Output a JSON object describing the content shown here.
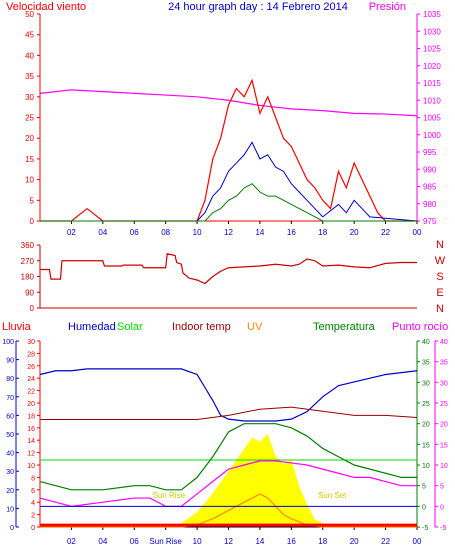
{
  "title": "24 hour graph day : 14 Febrero 2014",
  "colors": {
    "wind": "#ff0000",
    "gust_avg": "#0000cc",
    "wind_low": "#008000",
    "pressure": "#ff00ff",
    "direction": "#cc0000",
    "humidity": "#0000cc",
    "solar": "#00dd00",
    "indoor": "#990000",
    "uv": "#ff8800",
    "temperature": "#008000",
    "dewpoint": "#ff00ff",
    "rain": "#ff0000",
    "solar_fill": "#ffff00",
    "axis": "#000000"
  },
  "chart_data": [
    {
      "type": "line",
      "name": "wind-pressure",
      "left_label": "Velocidad viento",
      "right_label": "Presión",
      "x_ticks": [
        "02",
        "04",
        "06",
        "08",
        "10",
        "12",
        "14",
        "16",
        "18",
        "20",
        "22",
        "00"
      ],
      "x_range": [
        0,
        24
      ],
      "y_left_range": [
        0,
        50
      ],
      "y_left_ticks": [
        0,
        5,
        10,
        15,
        20,
        25,
        30,
        35,
        40,
        45,
        50
      ],
      "y_right_range": [
        975,
        1035
      ],
      "y_right_ticks": [
        975,
        980,
        985,
        990,
        995,
        1000,
        1005,
        1010,
        1015,
        1020,
        1025,
        1030,
        1035
      ],
      "pressure": {
        "x": [
          0,
          2,
          4,
          6,
          8,
          10,
          12,
          14,
          16,
          18,
          20,
          22,
          24
        ],
        "y": [
          1012,
          1013,
          1012.5,
          1012,
          1011.5,
          1011,
          1010,
          1008.5,
          1007.5,
          1007,
          1006.2,
          1006,
          1005.5
        ]
      },
      "wind_max": {
        "x": [
          0,
          1,
          2,
          3,
          4,
          5,
          6,
          7,
          8,
          9,
          10,
          10.5,
          11,
          11.5,
          12,
          12.5,
          13,
          13.5,
          14,
          14.5,
          15,
          15.5,
          16,
          16.5,
          17,
          17.5,
          18,
          18.5,
          19,
          19.5,
          20,
          20.5,
          21,
          21.5,
          22,
          22.5,
          23,
          24
        ],
        "y": [
          0,
          0,
          0,
          3,
          0,
          0,
          0,
          0,
          0,
          0,
          0,
          5,
          15,
          20,
          28,
          32,
          30,
          34,
          26,
          30,
          25,
          20,
          18,
          14,
          10,
          8,
          5,
          3,
          12,
          8,
          14,
          10,
          6,
          2,
          0,
          0,
          0,
          0
        ]
      },
      "wind_avg": {
        "x": [
          0,
          10,
          10.5,
          11,
          11.5,
          12,
          12.5,
          13,
          13.5,
          14,
          14.5,
          15,
          15.5,
          16,
          16.5,
          17,
          17.5,
          18,
          19,
          19.5,
          20,
          20.5,
          21,
          24
        ],
        "y": [
          0,
          0,
          2,
          6,
          8,
          12,
          14,
          16,
          19,
          15,
          16,
          13,
          12,
          9,
          7,
          5,
          3,
          1,
          4,
          2,
          5,
          3,
          1,
          0
        ]
      },
      "wind_low": {
        "x": [
          0,
          10.5,
          11,
          11.5,
          12,
          12.5,
          13,
          13.5,
          14,
          14.5,
          15,
          15.5,
          16,
          16.5,
          17,
          17.5,
          18,
          24
        ],
        "y": [
          0,
          0,
          2,
          3,
          5,
          6,
          8,
          9,
          7,
          6,
          6,
          5,
          4,
          3,
          2,
          1,
          0,
          0
        ]
      }
    },
    {
      "type": "line",
      "name": "wind-direction",
      "left_label_ticks": [
        0,
        90,
        180,
        270,
        360
      ],
      "right_labels": [
        "N",
        "W",
        "S",
        "E",
        "N"
      ],
      "y_range": [
        0,
        360
      ],
      "x_range": [
        0,
        24
      ],
      "direction": {
        "x": [
          0,
          0.6,
          0.7,
          1.3,
          1.4,
          4.0,
          4.1,
          5.2,
          5.3,
          6.5,
          6.6,
          8.0,
          8.1,
          8.6,
          8.7,
          9.0,
          9.1,
          9.5,
          10.0,
          10.5,
          11.0,
          11.5,
          12.0,
          13,
          14,
          15,
          16,
          16.5,
          17,
          17.5,
          18,
          19,
          20,
          21,
          22,
          23,
          24
        ],
        "y": [
          220,
          220,
          165,
          165,
          270,
          270,
          240,
          240,
          245,
          245,
          230,
          230,
          310,
          300,
          260,
          250,
          200,
          170,
          160,
          140,
          180,
          210,
          230,
          235,
          240,
          250,
          240,
          250,
          280,
          270,
          240,
          245,
          235,
          230,
          255,
          260,
          260
        ]
      }
    },
    {
      "type": "line",
      "name": "humidity-temperature",
      "labels": [
        "Lluvia",
        "Humedad",
        "Solar",
        "Indoor temp",
        "UV",
        "Temperatura",
        "Punto rocío"
      ],
      "x_ticks": [
        "02",
        "04",
        "06",
        "Sun Rise",
        "10",
        "12",
        "14",
        "16",
        "18",
        "20",
        "22",
        "00"
      ],
      "sun_labels": [
        "Sun Rise",
        "Sun Set"
      ],
      "x_range": [
        0,
        24
      ],
      "humidity_range": [
        0,
        100
      ],
      "humidity_ticks": [
        0,
        10,
        20,
        30,
        40,
        50,
        60,
        70,
        80,
        90,
        100
      ],
      "rain_ticks": [
        0,
        2,
        4,
        6,
        8,
        10,
        12,
        14,
        16,
        18,
        20,
        22,
        24,
        26,
        28,
        30
      ],
      "temp_range": [
        -5,
        40
      ],
      "temp_ticks": [
        -5,
        0,
        5,
        10,
        15,
        20,
        25,
        30,
        35,
        40
      ],
      "temp_ticks_outer": [
        -5,
        0,
        5,
        10,
        15,
        20,
        25,
        30,
        35,
        40
      ],
      "humidity": {
        "x": [
          0,
          1,
          2,
          3,
          4,
          6,
          8,
          9,
          10,
          10.5,
          11,
          11.5,
          12,
          13,
          14,
          15,
          16,
          17,
          18,
          19,
          20,
          21,
          22,
          23,
          24
        ],
        "y": [
          82,
          84,
          84,
          85,
          85,
          85,
          85,
          85,
          82,
          75,
          68,
          60,
          58,
          57,
          57,
          57,
          58,
          62,
          70,
          76,
          78,
          80,
          82,
          83,
          84
        ]
      },
      "solar_line": {
        "x": [
          0,
          24
        ],
        "y": [
          36,
          36
        ]
      },
      "indoor_temp": {
        "x": [
          0,
          4,
          8,
          10,
          12,
          14,
          16,
          18,
          20,
          22,
          24
        ],
        "y": [
          21,
          21,
          21,
          21,
          22,
          23.5,
          24,
          23,
          22,
          22,
          21.5
        ]
      },
      "temperature": {
        "x": [
          0,
          1,
          2,
          4,
          6,
          7,
          8,
          9,
          10,
          11,
          12,
          13,
          14,
          15,
          16,
          17,
          18,
          19,
          20,
          21,
          22,
          23,
          24
        ],
        "y": [
          6,
          5,
          4,
          4,
          5,
          5,
          4,
          4,
          7,
          12,
          18,
          20,
          20,
          20,
          19,
          17,
          14,
          12,
          10,
          9,
          8,
          7,
          7
        ]
      },
      "dewpoint": {
        "x": [
          0,
          1,
          2,
          4,
          6,
          7,
          8,
          9,
          10,
          11,
          12,
          13,
          14,
          15,
          16,
          17,
          18,
          19,
          20,
          21,
          22,
          23,
          24
        ],
        "y": [
          2,
          1,
          0,
          1,
          2,
          2,
          0,
          0,
          3,
          6,
          9,
          10,
          11,
          11,
          10.5,
          10,
          9,
          8,
          7,
          7,
          6,
          5,
          5
        ]
      },
      "uv": {
        "x": [
          0,
          9,
          10,
          11,
          12,
          13,
          14,
          14.5,
          15,
          15.5,
          16,
          17,
          18,
          24
        ],
        "y": [
          -5,
          -5,
          -4.5,
          -3,
          -1,
          1,
          3,
          2,
          0,
          -2,
          -3,
          -4.5,
          -5,
          -5
        ]
      },
      "solar_fill": {
        "x": [
          8.2,
          9,
          10,
          11,
          12,
          13,
          13.5,
          14,
          14.5,
          15,
          15.5,
          16,
          16.5,
          17,
          17.5,
          18.5
        ],
        "y": [
          0,
          2,
          8,
          18,
          30,
          42,
          48,
          46,
          50,
          38,
          34,
          36,
          22,
          12,
          4,
          0
        ]
      },
      "rain_baseline": {
        "x": [
          0,
          24
        ],
        "y": [
          0.3,
          0.3
        ]
      }
    }
  ]
}
